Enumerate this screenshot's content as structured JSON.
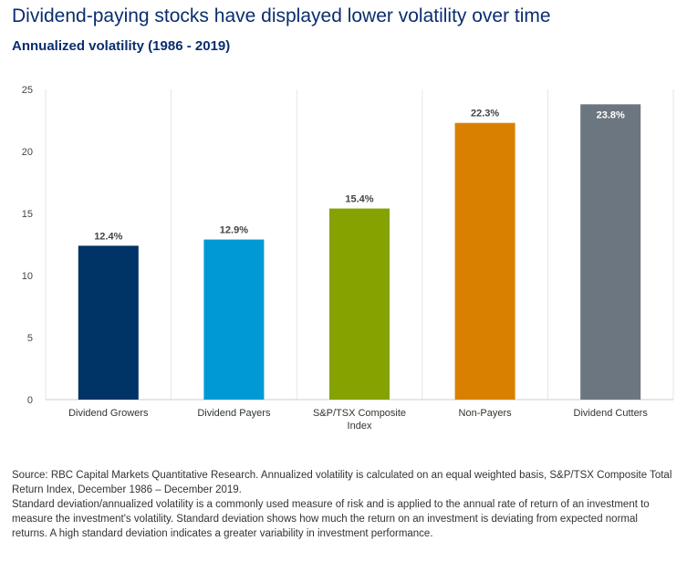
{
  "chart_data": {
    "type": "bar",
    "title": "Dividend-paying stocks have displayed lower volatility over time",
    "subtitle": "Annualized volatility (1986 - 2019)",
    "categories": [
      "Dividend Growers",
      "Dividend Payers",
      "S&P/TSX Composite Index",
      "Non-Payers",
      "Dividend Cutters"
    ],
    "values": [
      12.4,
      12.9,
      15.4,
      22.3,
      23.8
    ],
    "data_labels": [
      "12.4%",
      "12.9%",
      "15.4%",
      "22.3%",
      "23.8%"
    ],
    "colors": [
      "#003366",
      "#0099d6",
      "#85a200",
      "#d98000",
      "#6c7680"
    ],
    "ylim": [
      0,
      25
    ],
    "yticks": [
      0,
      5,
      10,
      15,
      20,
      25
    ],
    "xlabel": "",
    "ylabel": "",
    "grid": "vertical category separators",
    "legend": "none"
  },
  "notes": {
    "source": "Source: RBC Capital Markets Quantitative Research. Annualized volatility is calculated on an equal weighted basis, S&P/TSX Composite Total Return Index, December 1986 – December 2019.",
    "definition": "Standard deviation/annualized volatility is a commonly used measure of risk and is applied to the annual rate of return of an investment to measure the investment's volatility. Standard deviation shows how much the return on an investment is deviating from expected normal returns. A high standard deviation indicates a greater variability in investment performance."
  }
}
